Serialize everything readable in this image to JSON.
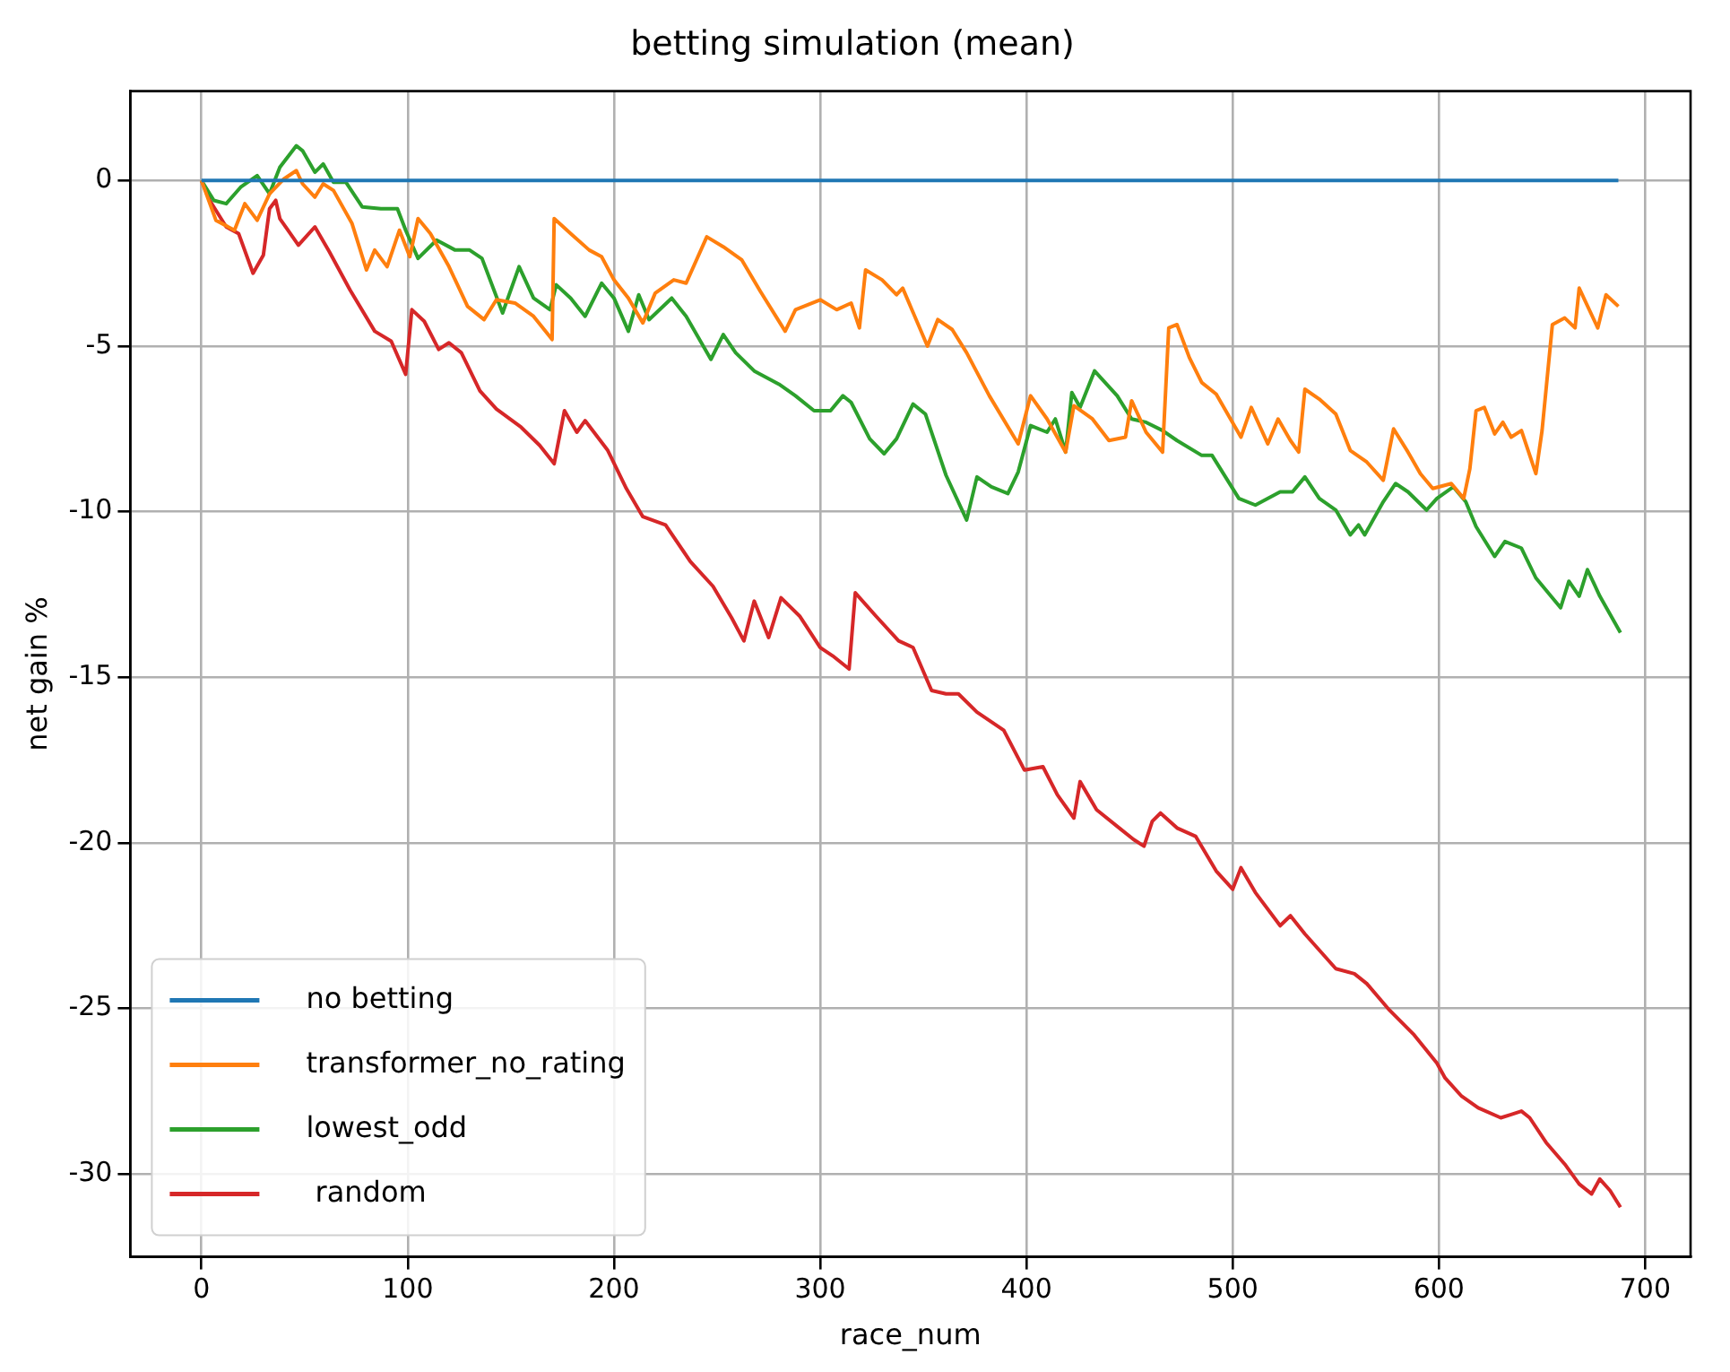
{
  "chart_data": {
    "type": "line",
    "title": "betting simulation (mean)",
    "xlabel": "race_num",
    "ylabel": "net gain %",
    "xlim": [
      -34.5,
      722
    ],
    "xticks": [
      0,
      100,
      200,
      300,
      400,
      500,
      600,
      700
    ],
    "ylim": [
      -32.5,
      2.7
    ],
    "yticks": [
      -30,
      -25,
      -20,
      -15,
      -10,
      -5,
      0
    ],
    "grid": true,
    "legend": "bottom left",
    "marker": "none",
    "line_style": "solid",
    "series": [
      {
        "name": "no betting",
        "color": "#1f77b4",
        "x": [
          0,
          687
        ],
        "values": [
          0,
          0
        ]
      },
      {
        "name": "transformer_no_rating",
        "color": "#ff7f0e",
        "x": [
          0,
          7,
          16,
          21,
          27,
          33,
          40,
          46,
          49,
          55,
          59,
          64,
          73,
          80,
          84,
          90,
          96,
          101,
          105,
          111,
          120,
          129,
          137,
          143,
          152,
          161,
          170,
          171,
          179,
          188,
          194,
          200,
          207,
          214,
          220,
          229,
          235,
          245,
          253,
          262,
          271,
          283,
          288,
          300,
          308,
          315,
          319,
          322,
          330,
          337,
          340,
          352,
          357,
          364,
          371,
          382,
          396,
          402,
          410,
          419,
          423,
          432,
          440,
          448,
          451,
          458,
          466,
          469,
          473,
          479,
          485,
          492,
          504,
          509,
          517,
          522,
          528,
          532,
          535,
          542,
          550,
          557,
          565,
          573,
          578,
          585,
          591,
          597,
          606,
          612,
          615,
          618,
          622,
          627,
          631,
          635,
          640,
          647,
          650,
          655,
          661,
          666,
          668,
          677,
          681,
          687
        ],
        "values": [
          0,
          -1.2,
          -1.5,
          -0.7,
          -1.2,
          -0.4,
          0.05,
          0.3,
          -0.1,
          -0.5,
          -0.1,
          -0.3,
          -1.3,
          -2.7,
          -2.1,
          -2.6,
          -1.5,
          -2.3,
          -1.15,
          -1.6,
          -2.6,
          -3.8,
          -4.2,
          -3.6,
          -3.7,
          -4.1,
          -4.8,
          -1.15,
          -1.6,
          -2.1,
          -2.3,
          -3.0,
          -3.55,
          -4.3,
          -3.4,
          -3.0,
          -3.1,
          -1.7,
          -2.0,
          -2.4,
          -3.35,
          -4.55,
          -3.9,
          -3.6,
          -3.9,
          -3.7,
          -4.45,
          -2.7,
          -3.0,
          -3.45,
          -3.25,
          -5.0,
          -4.2,
          -4.5,
          -5.2,
          -6.5,
          -7.95,
          -6.5,
          -7.2,
          -8.2,
          -6.8,
          -7.2,
          -7.85,
          -7.75,
          -6.65,
          -7.6,
          -8.2,
          -4.45,
          -4.35,
          -5.35,
          -6.1,
          -6.45,
          -7.75,
          -6.85,
          -7.95,
          -7.2,
          -7.85,
          -8.2,
          -6.3,
          -6.6,
          -7.05,
          -8.15,
          -8.5,
          -9.05,
          -7.5,
          -8.2,
          -8.85,
          -9.3,
          -9.15,
          -9.6,
          -8.7,
          -6.95,
          -6.85,
          -7.65,
          -7.3,
          -7.75,
          -7.55,
          -8.85,
          -7.55,
          -4.35,
          -4.15,
          -4.45,
          -3.25,
          -4.45,
          -3.45,
          -3.8
        ]
      },
      {
        "name": "lowest_odd",
        "color": "#2ca02c",
        "x": [
          0,
          6,
          12,
          19,
          27,
          33,
          38,
          46,
          49,
          55,
          59,
          64,
          70,
          78,
          87,
          95,
          99,
          105,
          114,
          123,
          130,
          136,
          146,
          154,
          161,
          169,
          172,
          179,
          186,
          194,
          200,
          207,
          212,
          217,
          228,
          235,
          247,
          253,
          259,
          268,
          280,
          288,
          297,
          305,
          311,
          315,
          324,
          331,
          337,
          345,
          351,
          361,
          371,
          376,
          383,
          391,
          396,
          402,
          410,
          414,
          419,
          422,
          426,
          433,
          444,
          451,
          458,
          466,
          473,
          485,
          490,
          503,
          511,
          523,
          529,
          535,
          542,
          550,
          557,
          561,
          564,
          573,
          579,
          585,
          594,
          599,
          607,
          613,
          618,
          627,
          632,
          640,
          647,
          659,
          663,
          668,
          672,
          678,
          688
        ],
        "values": [
          0,
          -0.6,
          -0.7,
          -0.2,
          0.15,
          -0.4,
          0.4,
          1.05,
          0.9,
          0.25,
          0.5,
          -0.05,
          -0.05,
          -0.8,
          -0.85,
          -0.85,
          -1.5,
          -2.35,
          -1.8,
          -2.1,
          -2.1,
          -2.35,
          -4.0,
          -2.6,
          -3.55,
          -3.9,
          -3.15,
          -3.55,
          -4.1,
          -3.1,
          -3.55,
          -4.55,
          -3.45,
          -4.2,
          -3.55,
          -4.1,
          -5.4,
          -4.65,
          -5.2,
          -5.75,
          -6.15,
          -6.5,
          -6.95,
          -6.95,
          -6.5,
          -6.7,
          -7.8,
          -8.25,
          -7.8,
          -6.75,
          -7.05,
          -8.9,
          -10.25,
          -8.95,
          -9.25,
          -9.45,
          -8.8,
          -7.4,
          -7.6,
          -7.2,
          -8.2,
          -6.4,
          -6.85,
          -5.75,
          -6.5,
          -7.2,
          -7.3,
          -7.55,
          -7.85,
          -8.3,
          -8.3,
          -9.6,
          -9.8,
          -9.4,
          -9.4,
          -8.95,
          -9.6,
          -9.95,
          -10.7,
          -10.4,
          -10.7,
          -9.7,
          -9.15,
          -9.4,
          -9.95,
          -9.6,
          -9.25,
          -9.7,
          -10.45,
          -11.35,
          -10.9,
          -11.1,
          -12.0,
          -12.9,
          -12.1,
          -12.55,
          -11.75,
          -12.55,
          -13.65
        ]
      },
      {
        "name": " random",
        "color": "#d62728",
        "x": [
          0,
          4,
          12,
          18,
          25,
          30,
          33,
          36,
          38,
          47,
          55,
          62,
          72,
          84,
          92,
          99,
          102,
          108,
          115,
          120,
          126,
          135,
          143,
          155,
          164,
          171,
          176,
          182,
          186,
          197,
          206,
          214,
          225,
          237,
          248,
          257,
          263,
          268,
          275,
          281,
          290,
          300,
          306,
          314,
          317,
          327,
          338,
          345,
          354,
          361,
          367,
          376,
          389,
          399,
          408,
          415,
          423,
          426,
          434,
          445,
          452,
          457,
          461,
          465,
          473,
          482,
          492,
          500,
          504,
          511,
          523,
          528,
          535,
          550,
          559,
          565,
          576,
          588,
          599,
          603,
          611,
          619,
          630,
          635,
          640,
          644,
          652,
          661,
          668,
          674,
          678,
          683,
          688
        ],
        "values": [
          0,
          -0.6,
          -1.4,
          -1.6,
          -2.8,
          -2.25,
          -0.85,
          -0.6,
          -1.15,
          -1.95,
          -1.4,
          -2.15,
          -3.3,
          -4.55,
          -4.85,
          -5.85,
          -3.9,
          -4.25,
          -5.1,
          -4.9,
          -5.2,
          -6.35,
          -6.9,
          -7.45,
          -8.0,
          -8.55,
          -6.95,
          -7.6,
          -7.25,
          -8.15,
          -9.3,
          -10.15,
          -10.4,
          -11.5,
          -12.25,
          -13.2,
          -13.9,
          -12.7,
          -13.8,
          -12.6,
          -13.15,
          -14.1,
          -14.35,
          -14.75,
          -12.45,
          -13.15,
          -13.9,
          -14.1,
          -15.4,
          -15.5,
          -15.5,
          -16.05,
          -16.6,
          -17.8,
          -17.7,
          -18.55,
          -19.25,
          -18.15,
          -19.0,
          -19.55,
          -19.9,
          -20.1,
          -19.35,
          -19.1,
          -19.55,
          -19.8,
          -20.85,
          -21.4,
          -20.75,
          -21.5,
          -22.5,
          -22.2,
          -22.75,
          -23.8,
          -23.95,
          -24.25,
          -25.05,
          -25.8,
          -26.65,
          -27.1,
          -27.65,
          -28.0,
          -28.3,
          -28.2,
          -28.1,
          -28.3,
          -29.05,
          -29.7,
          -30.3,
          -30.6,
          -30.15,
          -30.5,
          -31.0
        ]
      }
    ]
  }
}
